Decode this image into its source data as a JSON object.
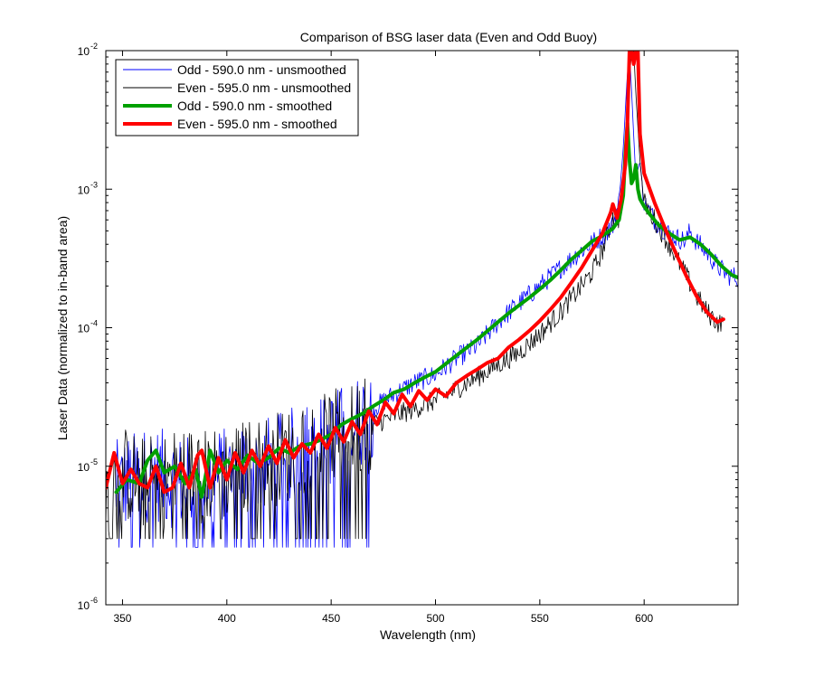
{
  "chart_data": {
    "type": "line",
    "title": "Comparison of BSG laser data (Even and Odd Buoy)",
    "xlabel": "Wavelength (nm)",
    "ylabel": "Laser Data (normalized to in-band area)",
    "xlim": [
      342,
      645
    ],
    "ylim": [
      1e-06,
      0.01
    ],
    "yscale": "log",
    "grid": false,
    "legend_position": "top-left",
    "x_ticks": [
      350,
      400,
      450,
      500,
      550,
      600
    ],
    "x_tick_labels": [
      "350",
      "400",
      "450",
      "500",
      "550",
      "600"
    ],
    "y_ticks": [
      {
        "value": 1e-06,
        "base": "10",
        "exp": "-6"
      },
      {
        "value": 1e-05,
        "base": "10",
        "exp": "-5"
      },
      {
        "value": 0.0001,
        "base": "10",
        "exp": "-4"
      },
      {
        "value": 0.001,
        "base": "10",
        "exp": "-3"
      },
      {
        "value": 0.01,
        "base": "10",
        "exp": "-2"
      }
    ],
    "series": [
      {
        "name": "Odd - 590.0 nm - unsmoothed",
        "color": "#0000ff",
        "width": 0.8,
        "noisy": true,
        "floor": 2.6e-06,
        "x": [
          347,
          355,
          365,
          372,
          380,
          388,
          395,
          405,
          415,
          425,
          435,
          445,
          450,
          460,
          470,
          480,
          490,
          500,
          510,
          520,
          530,
          540,
          550,
          560,
          570,
          580,
          585,
          588,
          590,
          592,
          593,
          594,
          596,
          598,
          600,
          605,
          610,
          615,
          620,
          622,
          625,
          630,
          635,
          640,
          645
        ],
        "y": [
          7e-06,
          8e-06,
          9e-06,
          8e-06,
          7.5e-06,
          8e-06,
          8.5e-06,
          9e-06,
          1e-05,
          1.1e-05,
          1.3e-05,
          1.5e-05,
          1.6e-05,
          1.9e-05,
          2.6e-05,
          3.3e-05,
          4e-05,
          4.6e-05,
          6e-05,
          7.4e-05,
          0.00011,
          0.00015,
          0.0002,
          0.00027,
          0.00036,
          0.00046,
          0.00055,
          0.0008,
          0.002,
          0.007,
          0.01,
          0.005,
          0.0012,
          0.0016,
          0.0008,
          0.0006,
          0.0005,
          0.00045,
          0.00042,
          0.0005,
          0.00042,
          0.00035,
          0.00028,
          0.00024,
          0.00023
        ]
      },
      {
        "name": "Even - 595.0 nm - unsmoothed",
        "color": "#000000",
        "width": 0.8,
        "noisy": true,
        "floor": 3e-06,
        "x": [
          342,
          350,
          360,
          370,
          380,
          390,
          400,
          410,
          420,
          430,
          440,
          450,
          460,
          470,
          480,
          490,
          500,
          510,
          520,
          530,
          540,
          550,
          560,
          570,
          575,
          580,
          585,
          588,
          590,
          592,
          594,
          595,
          596,
          598,
          600,
          605,
          610,
          615,
          620,
          625,
          630,
          635,
          638
        ],
        "y": [
          7e-06,
          9e-06,
          7.5e-06,
          8e-06,
          9e-06,
          8.5e-06,
          9e-06,
          1e-05,
          1.1e-05,
          1.2e-05,
          1.4e-05,
          1.6e-05,
          1.8e-05,
          2e-05,
          2.3e-05,
          2.6e-05,
          3e-05,
          3.6e-05,
          4.4e-05,
          5.4e-05,
          6.6e-05,
          9e-05,
          0.00013,
          0.0002,
          0.00025,
          0.00036,
          0.00062,
          0.0006,
          0.0012,
          0.004,
          0.01,
          0.01,
          0.005,
          0.0016,
          0.0008,
          0.0006,
          0.00045,
          0.00033,
          0.00024,
          0.00017,
          0.00013,
          0.00011,
          0.000105
        ]
      },
      {
        "name": "Odd - 590.0 nm - smoothed",
        "color": "#00a000",
        "width": 4,
        "x": [
          347,
          352,
          358,
          362,
          366,
          370,
          375,
          380,
          385,
          388,
          392,
          396,
          400,
          405,
          410,
          415,
          420,
          425,
          430,
          435,
          440,
          445,
          450,
          455,
          460,
          465,
          470,
          475,
          480,
          485,
          490,
          495,
          500,
          505,
          510,
          515,
          520,
          525,
          530,
          535,
          540,
          545,
          550,
          555,
          560,
          565,
          570,
          575,
          580,
          585,
          588,
          590,
          591,
          592,
          593,
          594,
          595,
          596,
          597,
          598,
          600,
          603,
          607,
          612,
          617,
          622,
          627,
          632,
          637,
          642,
          645
        ],
        "y": [
          6.5e-06,
          8e-06,
          7.5e-06,
          1.1e-05,
          1.3e-05,
          9e-06,
          1e-05,
          7.5e-06,
          9.5e-06,
          6e-06,
          1.3e-05,
          9e-06,
          1.1e-05,
          9.5e-06,
          1.2e-05,
          1.05e-05,
          1.15e-05,
          1.35e-05,
          1.25e-05,
          1.4e-05,
          1.45e-05,
          1.55e-05,
          1.7e-05,
          2e-05,
          2.2e-05,
          2.4e-05,
          2.7e-05,
          3e-05,
          3.4e-05,
          3.6e-05,
          4e-05,
          4.4e-05,
          4.8e-05,
          5.5e-05,
          6.3e-05,
          7.2e-05,
          8.2e-05,
          9.5e-05,
          0.00011,
          0.000127,
          0.000145,
          0.000165,
          0.00019,
          0.00022,
          0.00026,
          0.00031,
          0.00036,
          0.00042,
          0.00046,
          0.00052,
          0.0006,
          0.0009,
          0.0018,
          0.003,
          0.0016,
          0.0011,
          0.0012,
          0.0015,
          0.001,
          0.00085,
          0.00075,
          0.00065,
          0.00055,
          0.00048,
          0.00043,
          0.00045,
          0.0004,
          0.00034,
          0.00028,
          0.00024,
          0.00023
        ]
      },
      {
        "name": "Even - 595.0 nm - smoothed",
        "color": "#ff0000",
        "width": 4,
        "x": [
          342,
          346,
          350,
          354,
          358,
          362,
          366,
          370,
          374,
          378,
          382,
          386,
          388,
          392,
          396,
          400,
          404,
          408,
          412,
          416,
          420,
          424,
          428,
          432,
          436,
          440,
          444,
          448,
          452,
          456,
          460,
          464,
          468,
          472,
          476,
          480,
          484,
          488,
          492,
          496,
          500,
          505,
          510,
          515,
          520,
          525,
          530,
          535,
          540,
          545,
          550,
          555,
          560,
          565,
          570,
          575,
          580,
          584,
          585,
          587,
          589,
          591,
          592,
          593,
          594,
          595,
          596,
          597,
          598,
          600,
          605,
          610,
          615,
          620,
          625,
          630,
          635,
          638
        ],
        "y": [
          7e-06,
          1.25e-05,
          7.5e-06,
          9.5e-06,
          7.5e-06,
          7e-06,
          1e-05,
          6.5e-06,
          7e-06,
          1.05e-05,
          7e-06,
          1.2e-05,
          1.3e-05,
          7e-06,
          1.15e-05,
          8e-06,
          1.25e-05,
          9e-06,
          1.3e-05,
          1e-05,
          1.4e-05,
          1.05e-05,
          1.55e-05,
          1.15e-05,
          1.45e-05,
          1.25e-05,
          1.7e-05,
          1.35e-05,
          1.9e-05,
          1.5e-05,
          2.1e-05,
          1.7e-05,
          2.5e-05,
          2e-05,
          2.9e-05,
          2.4e-05,
          3.3e-05,
          2.7e-05,
          3.5e-05,
          3e-05,
          3.6e-05,
          3.2e-05,
          4e-05,
          4.5e-05,
          5e-05,
          5.6e-05,
          6e-05,
          7.2e-05,
          8.2e-05,
          9.5e-05,
          0.000112,
          0.000135,
          0.000165,
          0.00021,
          0.00027,
          0.00036,
          0.00048,
          0.00068,
          0.00078,
          0.00062,
          0.00085,
          0.0015,
          0.003,
          0.01,
          0.01,
          0.008,
          0.01,
          0.01,
          0.0025,
          0.0013,
          0.0008,
          0.00052,
          0.00035,
          0.00024,
          0.00017,
          0.00013,
          0.00011,
          0.000115
        ]
      }
    ]
  }
}
